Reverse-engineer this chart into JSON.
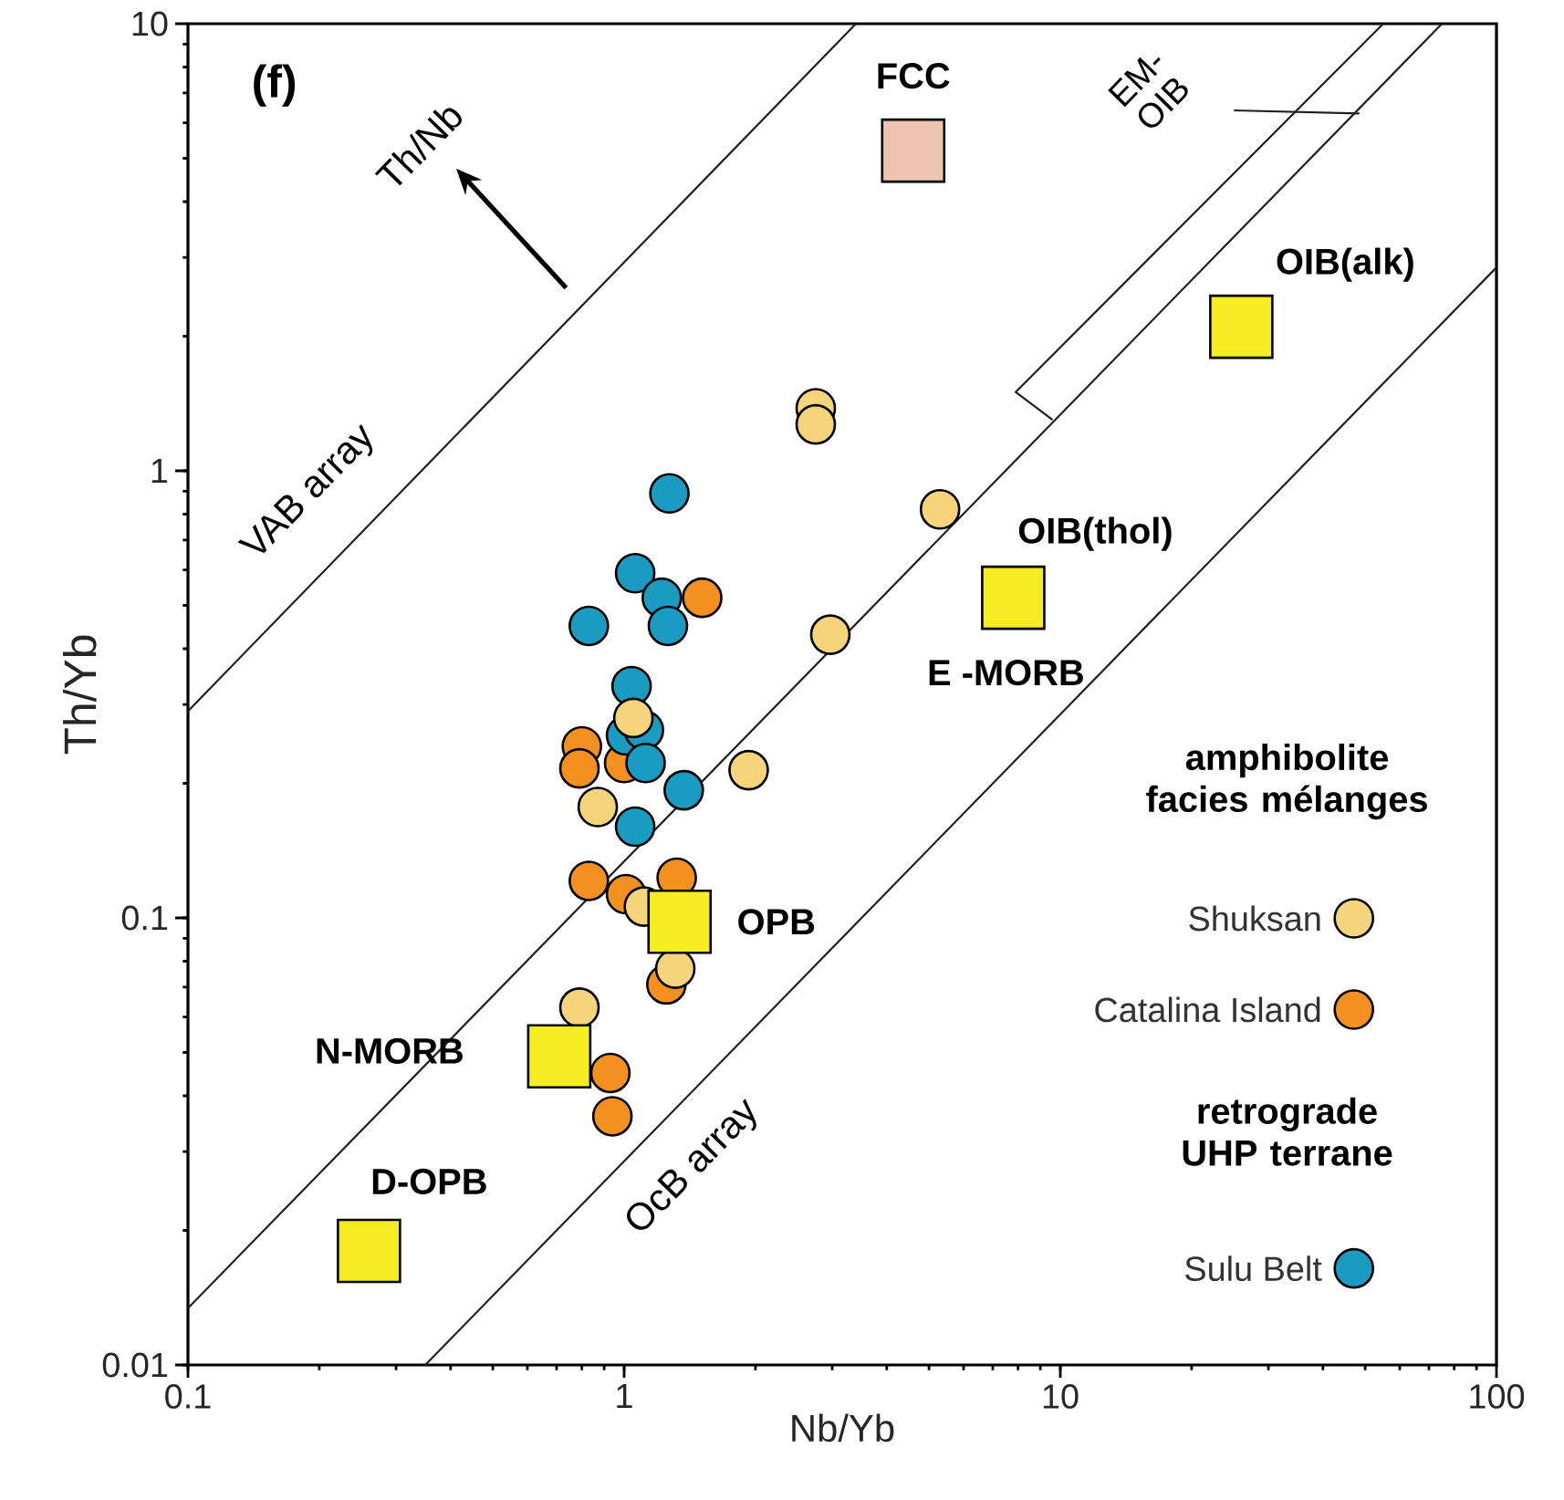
{
  "chart_data": {
    "type": "scatter",
    "xlabel": "Nb/Yb",
    "ylabel": "Th/Yb",
    "log": "xy",
    "xlim": [
      0.1,
      100
    ],
    "ylim": [
      0.01,
      10
    ],
    "xticks": [
      0.1,
      1,
      10,
      100
    ],
    "yticks": [
      0.01,
      0.1,
      1,
      10
    ],
    "legend": "bottom right",
    "marker": "circle",
    "series": [
      {
        "type": "line",
        "marker": "none",
        "color": "#231f20",
        "x": [
          0.1,
          3.4
        ],
        "values": [
          0.29,
          10
        ]
      },
      {
        "type": "line",
        "marker": "none",
        "color": "#231f20",
        "x": [
          0.1,
          75
        ],
        "values": [
          0.0134,
          10
        ]
      },
      {
        "type": "line",
        "marker": "none",
        "color": "#231f20",
        "x": [
          0.35,
          100
        ],
        "values": [
          0.01,
          2.85
        ]
      },
      {
        "type": "line",
        "marker": "none",
        "color": "#231f20",
        "x": [
          9.6,
          7.9,
          55
        ],
        "values": [
          1.3,
          1.5,
          10
        ]
      },
      {
        "type": "line",
        "marker": "none",
        "color": "#231f20",
        "x": [
          25,
          48.5
        ],
        "values": [
          6.4,
          6.3
        ]
      },
      {
        "name": "Catalina Island",
        "color": "#f39020",
        "x": [
          1.51,
          0.8,
          0.79,
          1.0,
          0.83,
          1.01,
          1.32,
          1.25,
          0.93,
          0.94
        ],
        "values": [
          0.52,
          0.242,
          0.216,
          0.222,
          0.121,
          0.113,
          0.123,
          0.071,
          0.045,
          0.036
        ]
      },
      {
        "name": "Sulu Belt",
        "color": "#1a9bc2",
        "x": [
          1.27,
          1.06,
          1.22,
          1.26,
          0.83,
          1.04,
          1.01,
          1.11,
          1.12,
          1.37,
          1.06
        ],
        "values": [
          0.89,
          0.59,
          0.52,
          0.45,
          0.45,
          0.33,
          0.256,
          0.263,
          0.222,
          0.193,
          0.16
        ]
      },
      {
        "name": "Shuksan",
        "color": "#f5d47c",
        "x": [
          2.75,
          2.75,
          5.3,
          2.97,
          1.05,
          1.93,
          0.87,
          1.11,
          1.31,
          0.79
        ],
        "values": [
          1.38,
          1.27,
          0.82,
          0.43,
          0.28,
          0.214,
          0.177,
          0.106,
          0.077,
          0.063
        ]
      },
      {
        "marker": "square",
        "colors": [
          "#ecc4af",
          "#f5ec22",
          "#f5ec22",
          "#f5ec22",
          "#f5ec22",
          "#f5ec22"
        ],
        "x": [
          4.6,
          26,
          7.8,
          1.34,
          0.71,
          0.26
        ],
        "values": [
          5.2,
          2.1,
          0.52,
          0.098,
          0.049,
          0.018
        ]
      }
    ],
    "annotations": [
      "(f)",
      "VAB array",
      "OcB array",
      "Th/Nb",
      {
        "text": "FCC",
        "x": 4.6,
        "y": 5.2
      },
      {
        "text": "OIB(alk)",
        "x": 26,
        "y": 2.1
      },
      {
        "text": "OIB(thol)",
        "x": 7.8,
        "y": 0.52
      },
      {
        "text": "E -MORB",
        "x": 7.8,
        "y": 0.52
      },
      {
        "text": "OPB",
        "x": 1.34,
        "y": 0.098
      },
      {
        "text": "N-MORB",
        "x": 0.71,
        "y": 0.049
      },
      {
        "text": "D-OPB",
        "x": 0.26,
        "y": 0.018
      },
      "EM-OIB",
      "amphibolite facies mélanges",
      "retrograde UHP terrane"
    ]
  }
}
